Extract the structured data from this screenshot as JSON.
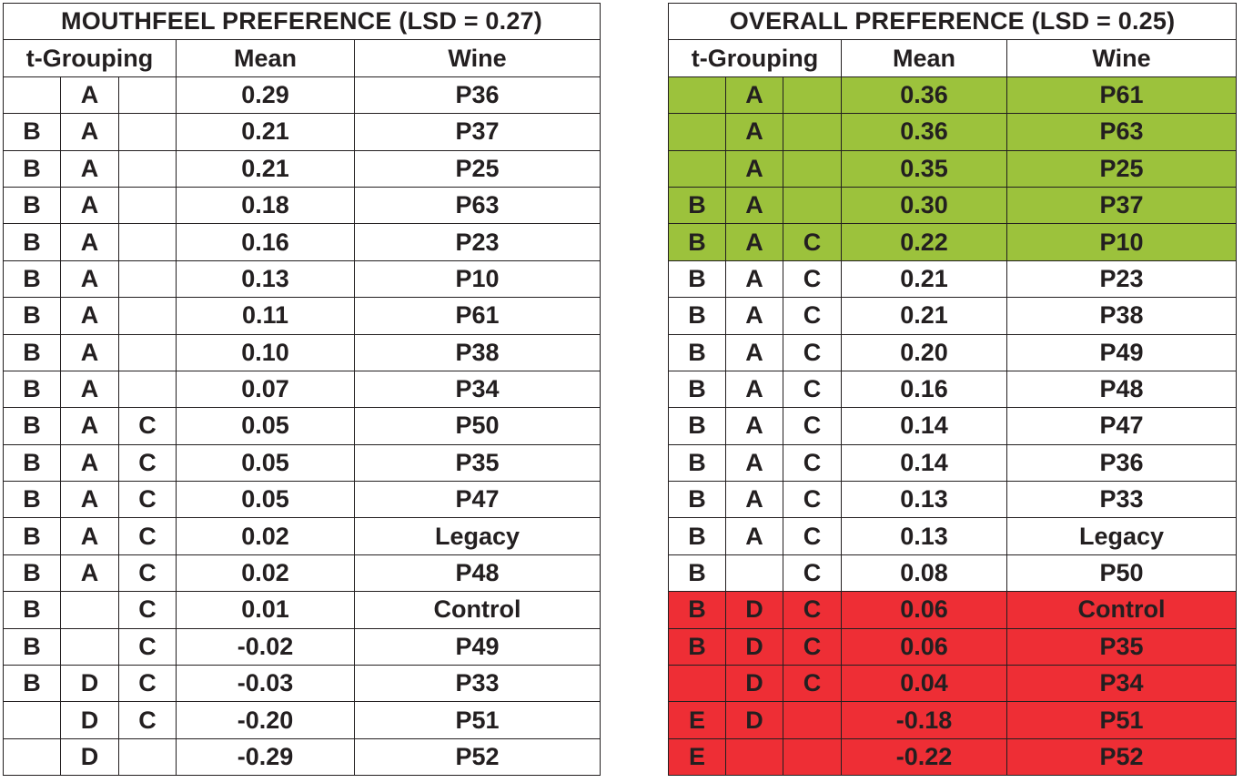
{
  "mouthfeel": {
    "title": "MOUTHFEEL PREFERENCE (LSD = 0.27)",
    "headers": {
      "grouping": "t-Grouping",
      "mean": "Mean",
      "wine": "Wine"
    },
    "rows": [
      {
        "g1": "",
        "g2": "A",
        "g3": "",
        "mean": "0.29",
        "wine": "P36"
      },
      {
        "g1": "B",
        "g2": "A",
        "g3": "",
        "mean": "0.21",
        "wine": "P37"
      },
      {
        "g1": "B",
        "g2": "A",
        "g3": "",
        "mean": "0.21",
        "wine": "P25"
      },
      {
        "g1": "B",
        "g2": "A",
        "g3": "",
        "mean": "0.18",
        "wine": "P63"
      },
      {
        "g1": "B",
        "g2": "A",
        "g3": "",
        "mean": "0.16",
        "wine": "P23"
      },
      {
        "g1": "B",
        "g2": "A",
        "g3": "",
        "mean": "0.13",
        "wine": "P10"
      },
      {
        "g1": "B",
        "g2": "A",
        "g3": "",
        "mean": "0.11",
        "wine": "P61"
      },
      {
        "g1": "B",
        "g2": "A",
        "g3": "",
        "mean": "0.10",
        "wine": "P38"
      },
      {
        "g1": "B",
        "g2": "A",
        "g3": "",
        "mean": "0.07",
        "wine": "P34"
      },
      {
        "g1": "B",
        "g2": "A",
        "g3": "C",
        "mean": "0.05",
        "wine": "P50"
      },
      {
        "g1": "B",
        "g2": "A",
        "g3": "C",
        "mean": "0.05",
        "wine": "P35"
      },
      {
        "g1": "B",
        "g2": "A",
        "g3": "C",
        "mean": "0.05",
        "wine": "P47"
      },
      {
        "g1": "B",
        "g2": "A",
        "g3": "C",
        "mean": "0.02",
        "wine": "Legacy"
      },
      {
        "g1": "B",
        "g2": "A",
        "g3": "C",
        "mean": "0.02",
        "wine": "P48"
      },
      {
        "g1": "B",
        "g2": "",
        "g3": "C",
        "mean": "0.01",
        "wine": "Control"
      },
      {
        "g1": "B",
        "g2": "",
        "g3": "C",
        "mean": "-0.02",
        "wine": "P49"
      },
      {
        "g1": "B",
        "g2": "D",
        "g3": "C",
        "mean": "-0.03",
        "wine": "P33"
      },
      {
        "g1": "",
        "g2": "D",
        "g3": "C",
        "mean": "-0.20",
        "wine": "P51"
      },
      {
        "g1": "",
        "g2": "D",
        "g3": "",
        "mean": "-0.29",
        "wine": "P52"
      }
    ]
  },
  "overall": {
    "title": "OVERALL PREFERENCE (LSD = 0.25)",
    "headers": {
      "grouping": "t-Grouping",
      "mean": "Mean",
      "wine": "Wine"
    },
    "highlight_colors": {
      "green": "#9cc23c",
      "red": "#ee2e35"
    },
    "rows": [
      {
        "g1": "",
        "g2": "A",
        "g3": "",
        "mean": "0.36",
        "wine": "P61",
        "highlight": "green"
      },
      {
        "g1": "",
        "g2": "A",
        "g3": "",
        "mean": "0.36",
        "wine": "P63",
        "highlight": "green"
      },
      {
        "g1": "",
        "g2": "A",
        "g3": "",
        "mean": "0.35",
        "wine": "P25",
        "highlight": "green"
      },
      {
        "g1": "B",
        "g2": "A",
        "g3": "",
        "mean": "0.30",
        "wine": "P37",
        "highlight": "green"
      },
      {
        "g1": "B",
        "g2": "A",
        "g3": "C",
        "mean": "0.22",
        "wine": "P10",
        "highlight": "green"
      },
      {
        "g1": "B",
        "g2": "A",
        "g3": "C",
        "mean": "0.21",
        "wine": "P23",
        "highlight": ""
      },
      {
        "g1": "B",
        "g2": "A",
        "g3": "C",
        "mean": "0.21",
        "wine": "P38",
        "highlight": ""
      },
      {
        "g1": "B",
        "g2": "A",
        "g3": "C",
        "mean": "0.20",
        "wine": "P49",
        "highlight": ""
      },
      {
        "g1": "B",
        "g2": "A",
        "g3": "C",
        "mean": "0.16",
        "wine": "P48",
        "highlight": ""
      },
      {
        "g1": "B",
        "g2": "A",
        "g3": "C",
        "mean": "0.14",
        "wine": "P47",
        "highlight": ""
      },
      {
        "g1": "B",
        "g2": "A",
        "g3": "C",
        "mean": "0.14",
        "wine": "P36",
        "highlight": ""
      },
      {
        "g1": "B",
        "g2": "A",
        "g3": "C",
        "mean": "0.13",
        "wine": "P33",
        "highlight": ""
      },
      {
        "g1": "B",
        "g2": "A",
        "g3": "C",
        "mean": "0.13",
        "wine": "Legacy",
        "highlight": ""
      },
      {
        "g1": "B",
        "g2": "",
        "g3": "C",
        "mean": "0.08",
        "wine": "P50",
        "highlight": ""
      },
      {
        "g1": "B",
        "g2": "D",
        "g3": "C",
        "mean": "0.06",
        "wine": "Control",
        "highlight": "red"
      },
      {
        "g1": "B",
        "g2": "D",
        "g3": "C",
        "mean": "0.06",
        "wine": "P35",
        "highlight": "red"
      },
      {
        "g1": "",
        "g2": "D",
        "g3": "C",
        "mean": "0.04",
        "wine": "P34",
        "highlight": "red"
      },
      {
        "g1": "E",
        "g2": "D",
        "g3": "",
        "mean": "-0.18",
        "wine": "P51",
        "highlight": "red"
      },
      {
        "g1": "E",
        "g2": "",
        "g3": "",
        "mean": "-0.22",
        "wine": "P52",
        "highlight": "red"
      }
    ]
  }
}
